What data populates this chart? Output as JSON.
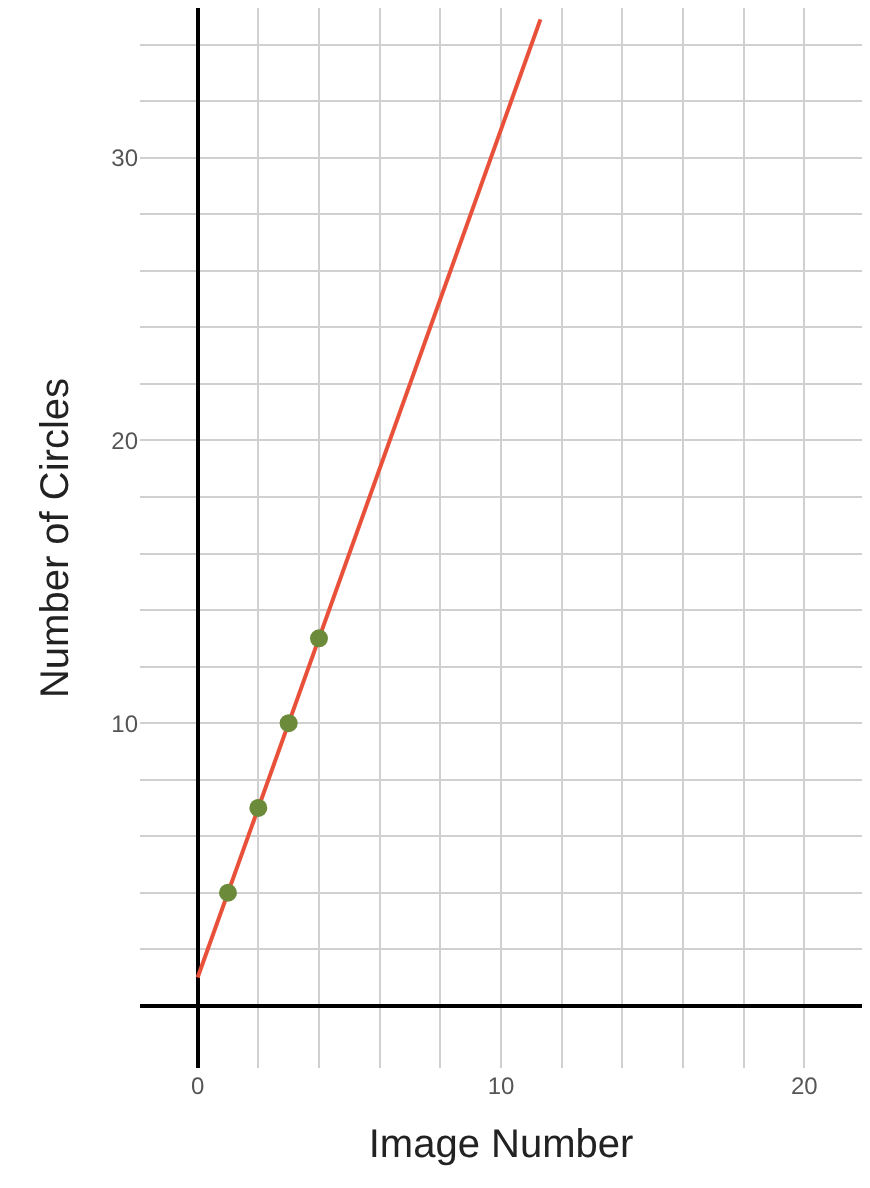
{
  "chart_data": {
    "type": "scatter",
    "xlabel": "Image Number",
    "ylabel": "Number of Circles",
    "series": [
      {
        "type": "line",
        "x": [
          0,
          11.3
        ],
        "values": [
          1,
          34.9
        ],
        "color": "#e8503a",
        "marker": "none"
      },
      {
        "x": [
          1,
          2,
          3,
          4
        ],
        "values": [
          4,
          7,
          10,
          13
        ],
        "color": "#6b8a3a",
        "marker": "circle"
      }
    ],
    "xlim": [
      -1.9,
      21.9
    ],
    "ylim": [
      -2.2,
      35.3
    ],
    "xticks": [
      0,
      {
        "value": 2,
        "label": null
      },
      {
        "value": 4,
        "label": null
      },
      {
        "value": 6,
        "label": null
      },
      {
        "value": 8,
        "label": null
      },
      10,
      {
        "value": 12,
        "label": null
      },
      {
        "value": 14,
        "label": null
      },
      {
        "value": 16,
        "label": null
      },
      {
        "value": 18,
        "label": null
      },
      20
    ],
    "yticks": [
      {
        "value": 2,
        "label": null
      },
      {
        "value": 4,
        "label": null
      },
      {
        "value": 6,
        "label": null
      },
      {
        "value": 8,
        "label": null
      },
      10,
      {
        "value": 12,
        "label": null
      },
      {
        "value": 14,
        "label": null
      },
      {
        "value": 16,
        "label": null
      },
      {
        "value": 18,
        "label": null
      },
      20,
      {
        "value": 22,
        "label": null
      },
      {
        "value": 24,
        "label": null
      },
      {
        "value": 26,
        "label": null
      },
      {
        "value": 28,
        "label": null
      },
      30,
      {
        "value": 32,
        "label": null
      },
      {
        "value": 34,
        "label": null
      }
    ],
    "grid": true
  }
}
